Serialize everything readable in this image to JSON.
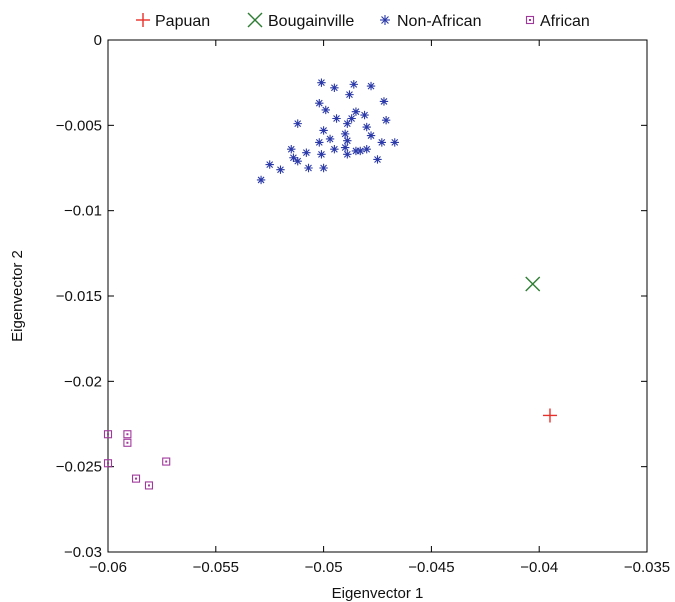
{
  "chart_data": {
    "type": "scatter",
    "title": "",
    "xlabel": "Eigenvector 1",
    "ylabel": "Eigenvector 2",
    "xlim": [
      -0.06,
      -0.035
    ],
    "ylim": [
      -0.03,
      0
    ],
    "xticks": [
      -0.06,
      -0.055,
      -0.05,
      -0.045,
      -0.04,
      -0.035
    ],
    "yticks": [
      0,
      -0.005,
      -0.01,
      -0.015,
      -0.02,
      -0.025,
      -0.03
    ],
    "xtick_labels": [
      "−0.06",
      "−0.055",
      "−0.05",
      "−0.045",
      "−0.04",
      "−0.035"
    ],
    "ytick_labels": [
      "0",
      "−0.005",
      "−0.01",
      "−0.015",
      "−0.02",
      "−0.025",
      "−0.03"
    ],
    "grid": false,
    "legend_position": "top",
    "series": [
      {
        "name": "Papuan",
        "marker": "plus",
        "color": "#e8302a",
        "points": [
          [
            -0.0395,
            -0.022
          ]
        ]
      },
      {
        "name": "Bougainville",
        "marker": "cross",
        "color": "#2e7d32",
        "points": [
          [
            -0.0403,
            -0.0143
          ]
        ]
      },
      {
        "name": "Non-African",
        "marker": "asterisk",
        "color": "#2b3aa8",
        "points": [
          [
            -0.0501,
            -0.0025
          ],
          [
            -0.0486,
            -0.0026
          ],
          [
            -0.0478,
            -0.0027
          ],
          [
            -0.0495,
            -0.0028
          ],
          [
            -0.0488,
            -0.0032
          ],
          [
            -0.0472,
            -0.0036
          ],
          [
            -0.0502,
            -0.0037
          ],
          [
            -0.0499,
            -0.0041
          ],
          [
            -0.0485,
            -0.0042
          ],
          [
            -0.0481,
            -0.0044
          ],
          [
            -0.0494,
            -0.0046
          ],
          [
            -0.0471,
            -0.0047
          ],
          [
            -0.0487,
            -0.0046
          ],
          [
            -0.0489,
            -0.0049
          ],
          [
            -0.0512,
            -0.0049
          ],
          [
            -0.048,
            -0.0051
          ],
          [
            -0.05,
            -0.0053
          ],
          [
            -0.049,
            -0.0055
          ],
          [
            -0.0478,
            -0.0056
          ],
          [
            -0.0497,
            -0.0058
          ],
          [
            -0.0502,
            -0.006
          ],
          [
            -0.0489,
            -0.0059
          ],
          [
            -0.0473,
            -0.006
          ],
          [
            -0.0467,
            -0.006
          ],
          [
            -0.049,
            -0.0063
          ],
          [
            -0.0485,
            -0.0065
          ],
          [
            -0.048,
            -0.0064
          ],
          [
            -0.0515,
            -0.0064
          ],
          [
            -0.0495,
            -0.0064
          ],
          [
            -0.0508,
            -0.0066
          ],
          [
            -0.0501,
            -0.0067
          ],
          [
            -0.0489,
            -0.0067
          ],
          [
            -0.0483,
            -0.0065
          ],
          [
            -0.0514,
            -0.0069
          ],
          [
            -0.0512,
            -0.0071
          ],
          [
            -0.0475,
            -0.007
          ],
          [
            -0.0525,
            -0.0073
          ],
          [
            -0.052,
            -0.0076
          ],
          [
            -0.0507,
            -0.0075
          ],
          [
            -0.05,
            -0.0075
          ],
          [
            -0.0529,
            -0.0082
          ]
        ]
      },
      {
        "name": "African",
        "marker": "square",
        "color": "#a0389c",
        "points": [
          [
            -0.06,
            -0.0231
          ],
          [
            -0.0591,
            -0.0231
          ],
          [
            -0.0591,
            -0.0236
          ],
          [
            -0.06,
            -0.0248
          ],
          [
            -0.0573,
            -0.0247
          ],
          [
            -0.0587,
            -0.0257
          ],
          [
            -0.0581,
            -0.0261
          ]
        ]
      }
    ]
  }
}
